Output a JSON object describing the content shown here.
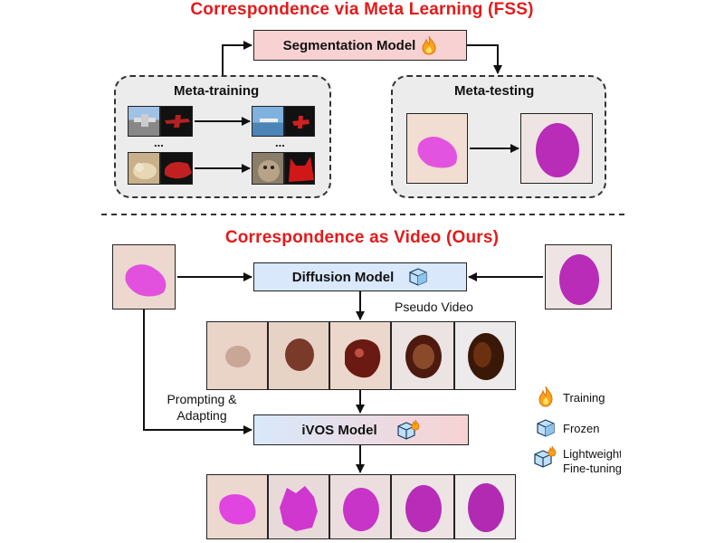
{
  "top": {
    "title": "Correspondence via Meta Learning (FSS)",
    "model_label": "Segmentation Model",
    "training_panel_label": "Meta-training",
    "testing_panel_label": "Meta-testing",
    "ellipsis": "..."
  },
  "bottom": {
    "title": "Correspondence as Video (Ours)",
    "diffusion_label": "Diffusion Model",
    "pseudo_video_label": "Pseudo Video",
    "prompting_label_line1": "Prompting &",
    "prompting_label_line2": "Adapting",
    "ivos_label": "iVOS Model"
  },
  "legend": {
    "training": "Training",
    "frozen": "Frozen",
    "lightweight_line1": "Lightweight",
    "lightweight_line2": "Fine-tuning"
  },
  "colors": {
    "title_red": "#e41a1a",
    "segmentation_box": "#f8d2d2",
    "diffusion_box": "#d9e8fb",
    "ivos_gradient_start": "#d9e8fb",
    "ivos_gradient_end": "#f8d2d2",
    "mask_magenta": "#cc33cc"
  },
  "icons": [
    "flame-icon",
    "cube-icon",
    "cube-flame-icon"
  ]
}
